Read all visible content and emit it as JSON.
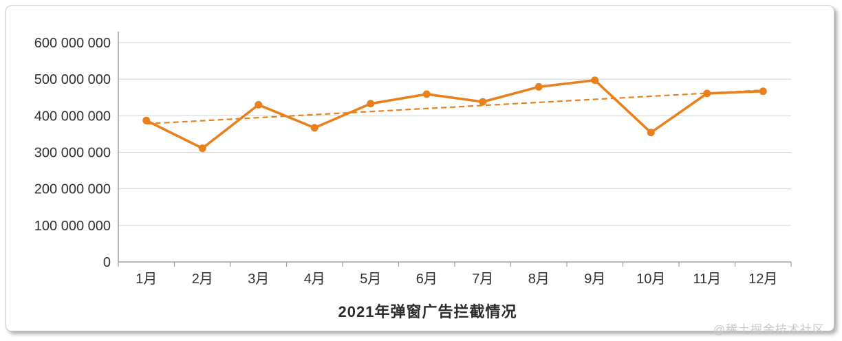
{
  "page": {
    "watermark": "@稀土掘金技术社区"
  },
  "chart_data": {
    "type": "line",
    "title": "2021年弹窗广告拦截情况",
    "xlabel": "",
    "ylabel": "",
    "categories": [
      "1月",
      "2月",
      "3月",
      "4月",
      "5月",
      "6月",
      "7月",
      "8月",
      "9月",
      "10月",
      "11月",
      "12月"
    ],
    "values": [
      387000000,
      311000000,
      430000000,
      367000000,
      433000000,
      459000000,
      438000000,
      479000000,
      497000000,
      354000000,
      461000000,
      467000000
    ],
    "trendline": {
      "type": "linear",
      "style": "dashed",
      "start_value": 378000000,
      "end_value": 470000000
    },
    "ylim": [
      0,
      600000000
    ],
    "ytick_interval": 100000000,
    "ytick_labels": [
      "0",
      "100 000 000",
      "200 000 000",
      "300 000 000",
      "400 000 000",
      "500 000 000",
      "600 000 000"
    ],
    "grid": true,
    "legend": "none",
    "marker": "circle",
    "colors": {
      "series": "#e8801e",
      "trendline": "#e8801e",
      "gridline": "#d2d2d2",
      "axis": "#9e9e9e",
      "tick_label": "#2f2f2f",
      "title": "#2b2b2b",
      "watermark": "#c9c9c9"
    }
  }
}
